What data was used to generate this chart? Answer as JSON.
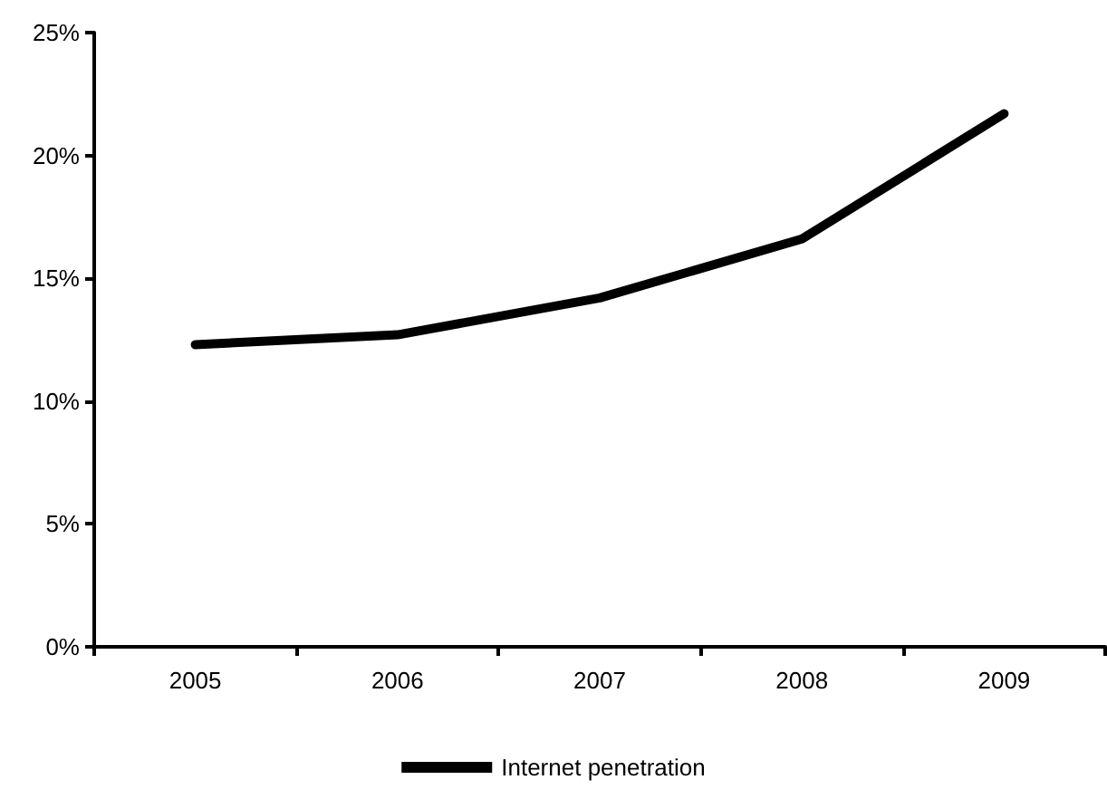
{
  "chart_data": {
    "type": "line",
    "categories": [
      "2005",
      "2006",
      "2007",
      "2008",
      "2009"
    ],
    "series": [
      {
        "name": "Internet penetration",
        "color": "#000000",
        "values": [
          12.3,
          12.7,
          14.2,
          16.6,
          21.7
        ]
      }
    ],
    "ylim": [
      0,
      25
    ],
    "yticks": [
      {
        "value": 0,
        "label": "0%"
      },
      {
        "value": 5,
        "label": "5%"
      },
      {
        "value": 10,
        "label": "10%"
      },
      {
        "value": 15,
        "label": "15%"
      },
      {
        "value": 20,
        "label": "20%"
      },
      {
        "value": 25,
        "label": "25%"
      }
    ],
    "grid": false,
    "legend": "bottom",
    "marker": "none",
    "line_style": "solid"
  }
}
